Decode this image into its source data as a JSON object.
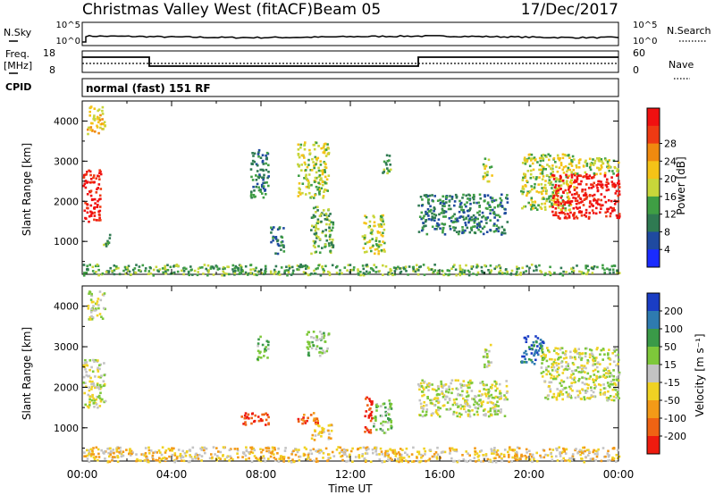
{
  "header": {
    "title": "Christmas Valley West (fitACF)",
    "beam": "Beam 05",
    "date": "17/Dec/2017"
  },
  "noise_panel": {
    "left_label": "N.Sky",
    "right_label": "N.Search",
    "left_ticks": [
      "10^5",
      "10^0"
    ],
    "right_ticks": [
      "10^5",
      "10^0"
    ]
  },
  "freq_panel": {
    "left_label_1": "Freq.",
    "left_label_2": "[MHz]",
    "right_label": "Nave",
    "left_ticks": [
      "18",
      "8"
    ],
    "right_ticks": [
      "60",
      "0"
    ],
    "cpid_label": "CPID",
    "program": "normal (fast) 151 RF"
  },
  "colors": {
    "power_scale": [
      "#1a2bff",
      "#1f4aa0",
      "#2f7a52",
      "#3f9e44",
      "#c8d63a",
      "#f5c317",
      "#f08a0f",
      "#ee3a13",
      "#f01010"
    ],
    "velocity_scale": [
      "#1a3dc4",
      "#2e7bb0",
      "#3a9a48",
      "#7ec83a",
      "#c3c3c3",
      "#f0d223",
      "#f39a17",
      "#ef6313",
      "#ee1b0f"
    ]
  },
  "chart_data": [
    {
      "type": "heatmap",
      "name": "power",
      "ylabel": "Slant Range [km]",
      "ylim": [
        180,
        4500
      ],
      "y_ticks": [
        "1000",
        "2000",
        "3000",
        "4000"
      ],
      "colorbar_label": "Power [dB]",
      "colorbar_ticks": [
        "4",
        "8",
        "12",
        "16",
        "20",
        "24",
        "28"
      ],
      "regions": [
        {
          "t": [
            0.0,
            0.8
          ],
          "r": [
            1500,
            2800
          ],
          "level": 8
        },
        {
          "t": [
            0.2,
            1.0
          ],
          "r": [
            3700,
            4400
          ],
          "level": 5
        },
        {
          "t": [
            0.8,
            1.2
          ],
          "r": [
            900,
            1200
          ],
          "level": 3
        },
        {
          "t": [
            7.5,
            8.3
          ],
          "r": [
            2100,
            3300
          ],
          "level": 2
        },
        {
          "t": [
            8.4,
            9.0
          ],
          "r": [
            700,
            1400
          ],
          "level": 2
        },
        {
          "t": [
            9.6,
            11.0
          ],
          "r": [
            2100,
            3500
          ],
          "level": 4
        },
        {
          "t": [
            10.2,
            11.2
          ],
          "r": [
            700,
            1900
          ],
          "level": 3
        },
        {
          "t": [
            12.5,
            13.5
          ],
          "r": [
            700,
            1700
          ],
          "level": 4
        },
        {
          "t": [
            13.4,
            13.8
          ],
          "r": [
            2700,
            3200
          ],
          "level": 3
        },
        {
          "t": [
            15.0,
            19.0
          ],
          "r": [
            1200,
            2200
          ],
          "level": 2
        },
        {
          "t": [
            17.9,
            18.3
          ],
          "r": [
            2500,
            3100
          ],
          "level": 4
        },
        {
          "t": [
            19.6,
            22.0
          ],
          "r": [
            1800,
            3200
          ],
          "level": 4
        },
        {
          "t": [
            21.0,
            24.0
          ],
          "r": [
            1600,
            2700
          ],
          "level": 8
        },
        {
          "t": [
            22.0,
            24.0
          ],
          "r": [
            2700,
            3100
          ],
          "level": 4
        },
        {
          "t": [
            0.0,
            24.0
          ],
          "r": [
            180,
            450
          ],
          "level": 3
        }
      ]
    },
    {
      "type": "heatmap",
      "name": "velocity",
      "ylabel": "Slant Range [km]",
      "ylim": [
        180,
        4500
      ],
      "y_ticks": [
        "1000",
        "2000",
        "3000",
        "4000"
      ],
      "colorbar_label": "Velocity [m s⁻¹]",
      "colorbar_ticks": [
        "200",
        "100",
        "50",
        "15",
        "-15",
        "-50",
        "-100",
        "-200"
      ],
      "xlabel": "Time UT",
      "x_ticks": [
        "00:00",
        "04:00",
        "08:00",
        "12:00",
        "16:00",
        "20:00",
        "00:00"
      ],
      "regions": [
        {
          "t": [
            0.0,
            1.0
          ],
          "r": [
            1500,
            2700
          ],
          "level": 4
        },
        {
          "t": [
            0.2,
            1.0
          ],
          "r": [
            3700,
            4400
          ],
          "level": 4
        },
        {
          "t": [
            7.0,
            8.3
          ],
          "r": [
            1100,
            1400
          ],
          "level": 8
        },
        {
          "t": [
            7.8,
            8.3
          ],
          "r": [
            2700,
            3300
          ],
          "level": 3
        },
        {
          "t": [
            9.6,
            10.6
          ],
          "r": [
            1100,
            1400
          ],
          "level": 7
        },
        {
          "t": [
            10.2,
            11.2
          ],
          "r": [
            700,
            1100
          ],
          "level": 5
        },
        {
          "t": [
            10.0,
            11.0
          ],
          "r": [
            2800,
            3400
          ],
          "level": 3
        },
        {
          "t": [
            12.6,
            13.0
          ],
          "r": [
            900,
            1800
          ],
          "level": 8
        },
        {
          "t": [
            13.0,
            13.8
          ],
          "r": [
            900,
            1700
          ],
          "level": 3
        },
        {
          "t": [
            15.0,
            19.0
          ],
          "r": [
            1300,
            2200
          ],
          "level": 4
        },
        {
          "t": [
            17.9,
            18.3
          ],
          "r": [
            2500,
            3100
          ],
          "level": 4
        },
        {
          "t": [
            19.6,
            20.6
          ],
          "r": [
            2600,
            3300
          ],
          "level": 1
        },
        {
          "t": [
            20.5,
            24.0
          ],
          "r": [
            1700,
            3000
          ],
          "level": 4
        },
        {
          "t": [
            0.0,
            24.0
          ],
          "r": [
            180,
            550
          ],
          "level": 5
        }
      ]
    }
  ]
}
